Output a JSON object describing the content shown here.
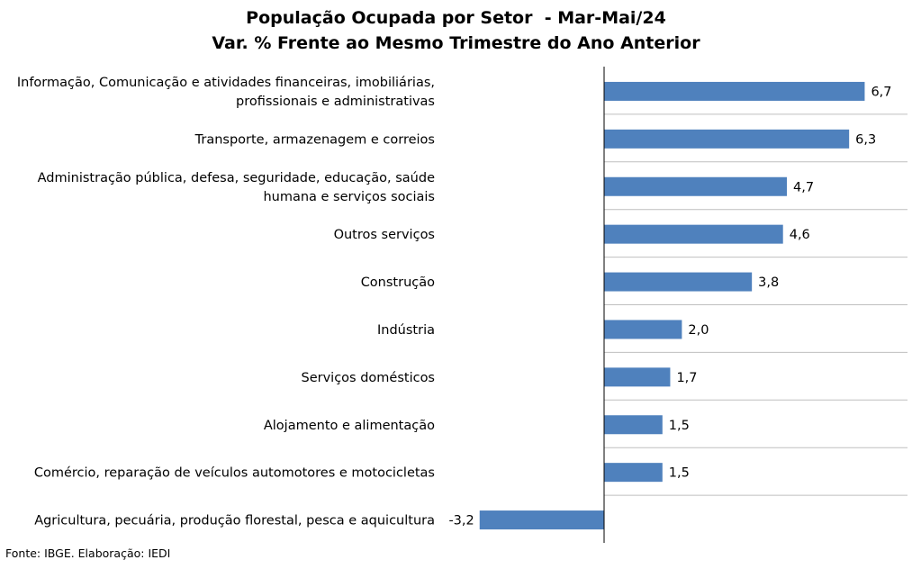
{
  "chart_data": {
    "type": "bar",
    "orientation": "horizontal",
    "title": [
      "População Ocupada por Setor  - Mar-Mai/24",
      "Var. % Frente ao Mesmo Trimestre do Ano Anterior"
    ],
    "categories": [
      [
        "Informação, Comunicação e atividades financeiras, imobiliárias,",
        "profissionais e administrativas"
      ],
      [
        "Transporte, armazenagem e correios"
      ],
      [
        "Administração pública, defesa, seguridade, educação, saúde",
        "humana e serviços sociais"
      ],
      [
        "Outros serviços"
      ],
      [
        "Construção"
      ],
      [
        "Indústria"
      ],
      [
        "Serviços domésticos"
      ],
      [
        "Alojamento e alimentação"
      ],
      [
        "Comércio, reparação de veículos automotores e motocicletas"
      ],
      [
        "Agricultura, pecuária, produção florestal, pesca e aquicultura"
      ]
    ],
    "values": [
      6.7,
      6.3,
      4.7,
      4.6,
      3.8,
      2.0,
      1.7,
      1.5,
      1.5,
      -3.2
    ],
    "value_labels": [
      "6,7",
      "6,3",
      "4,7",
      "4,6",
      "3,8",
      "2,0",
      "1,7",
      "1,5",
      "1,5",
      "-3,2"
    ],
    "bar_color": "#4f81bd",
    "grid": true,
    "legend": "none"
  },
  "source": "Fonte: IBGE. Elaboração: IEDI"
}
